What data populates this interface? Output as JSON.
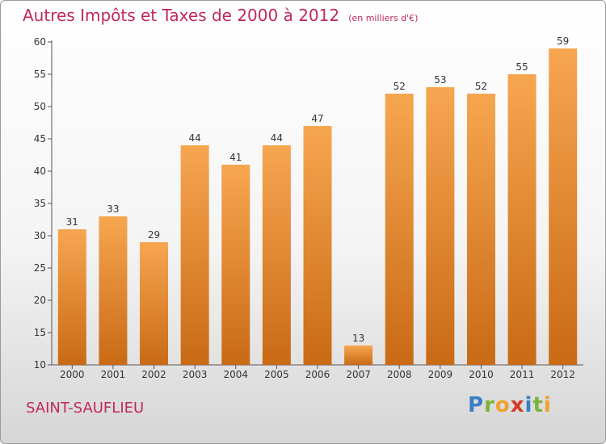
{
  "title": "Autres Impôts et Taxes de 2000 à 2012",
  "unit": "(en milliers d'€)",
  "commune": "SAINT-SAUFLIEU",
  "logo": "Proxiti",
  "colors": {
    "title": "#c0295a",
    "bar_top": "#f7a650",
    "bar_bottom": "#c96a15"
  },
  "chart_data": {
    "type": "bar",
    "categories": [
      "2000",
      "2001",
      "2002",
      "2003",
      "2004",
      "2005",
      "2006",
      "2007",
      "2008",
      "2009",
      "2010",
      "2011",
      "2012"
    ],
    "values": [
      31,
      33,
      29,
      44,
      41,
      44,
      47,
      13,
      52,
      53,
      52,
      55,
      59
    ],
    "ylim": [
      10,
      60
    ],
    "yticks": [
      10,
      15,
      20,
      25,
      30,
      35,
      40,
      45,
      50,
      55,
      60
    ],
    "grid": false,
    "data_labels": true
  }
}
